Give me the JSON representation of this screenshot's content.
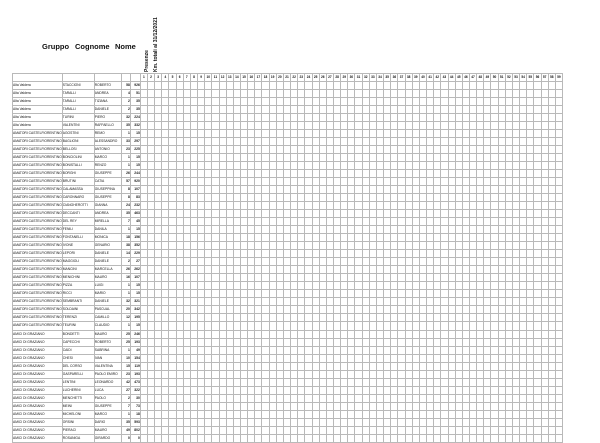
{
  "headers": {
    "gruppo": "Gruppo",
    "cognome": "Cognome",
    "nome": "Nome",
    "presenze": "Presenze",
    "km": "Km. totali al 31/12/2021"
  },
  "race_numbers": [
    1,
    2,
    3,
    4,
    5,
    6,
    7,
    8,
    9,
    10,
    11,
    12,
    13,
    14,
    15,
    16,
    17,
    18,
    19,
    20,
    21,
    22,
    23,
    24,
    25,
    26,
    27,
    28,
    29,
    30,
    31,
    32,
    33,
    34,
    35,
    36,
    37,
    38,
    39,
    40,
    41,
    42,
    43,
    44,
    45,
    46,
    47,
    48,
    49,
    50,
    51,
    52,
    53,
    54,
    55,
    56,
    57,
    58,
    59
  ],
  "race_names": [],
  "rows": [
    {
      "gruppo": "Alta Valdera",
      "cognome": "STACCIONI",
      "nome": "ROBERTO",
      "presenze": 58,
      "km": 926,
      "scores": []
    },
    {
      "gruppo": "Alta Valdera",
      "cognome": "TARALLI",
      "nome": "ANDREA",
      "presenze": 4,
      "km": 51,
      "scores": []
    },
    {
      "gruppo": "Alta Valdera",
      "cognome": "TARALLI",
      "nome": "TIZIANA",
      "presenze": 2,
      "km": 35,
      "scores": []
    },
    {
      "gruppo": "Alta Valdera",
      "cognome": "TARALLI",
      "nome": "DANIELE",
      "presenze": 2,
      "km": 35,
      "scores": []
    },
    {
      "gruppo": "Alta Valdera",
      "cognome": "TURINI",
      "nome": "PIERO",
      "presenze": 32,
      "km": 224,
      "scores": []
    },
    {
      "gruppo": "Alta Valdera",
      "cognome": "VALENTINI",
      "nome": "RAFFAELLO",
      "presenze": 35,
      "km": 332,
      "scores": []
    },
    {
      "gruppo": "AMATORI CASTELFIORENTINO",
      "cognome": "AGOSTINI",
      "nome": "REMO",
      "presenze": 1,
      "km": 15,
      "scores": []
    },
    {
      "gruppo": "AMATORI CASTELFIORENTINO",
      "cognome": "BAGLIONI",
      "nome": "ALESSANDRO",
      "presenze": 33,
      "km": 297,
      "scores": []
    },
    {
      "gruppo": "AMATORI CASTELFIORENTINO",
      "cognome": "BELLOSI",
      "nome": "ANTONIO",
      "presenze": 23,
      "km": 225,
      "scores": []
    },
    {
      "gruppo": "AMATORI CASTELFIORENTINO",
      "cognome": "BONCIOLINI",
      "nome": "MARCO",
      "presenze": 1,
      "km": 15,
      "scores": []
    },
    {
      "gruppo": "AMATORI CASTELFIORENTINO",
      "cognome": "BONISTALLI",
      "nome": "RENZO",
      "presenze": 1,
      "km": 15,
      "scores": []
    },
    {
      "gruppo": "AMATORI CASTELFIORENTINO",
      "cognome": "BORGHI",
      "nome": "GIUSEPPE",
      "presenze": 26,
      "km": 244,
      "scores": []
    },
    {
      "gruppo": "AMATORI CASTELFIORENTINO",
      "cognome": "BRUTINI",
      "nome": "CATIA",
      "presenze": 57,
      "km": 920,
      "scores": []
    },
    {
      "gruppo": "AMATORI CASTELFIORENTINO",
      "cognome": "CALAMASSA",
      "nome": "GIUSEPPINA",
      "presenze": 8,
      "km": 107,
      "scores": []
    },
    {
      "gruppo": "AMATORI CASTELFIORENTINO",
      "cognome": "CARONNARO",
      "nome": "GIUSEPPE",
      "presenze": 8,
      "km": 83,
      "scores": []
    },
    {
      "gruppo": "AMATORI CASTELFIORENTINO",
      "cognome": "CIANGHEROTTI",
      "nome": "GIANNA",
      "presenze": 24,
      "km": 232,
      "scores": []
    },
    {
      "gruppo": "AMATORI CASTELFIORENTINO",
      "cognome": "DECCANTI",
      "nome": "ANDREA",
      "presenze": 35,
      "km": 463,
      "scores": []
    },
    {
      "gruppo": "AMATORI CASTELFIORENTINO",
      "cognome": "DEL REY",
      "nome": "MIRELLA",
      "presenze": 7,
      "km": 45,
      "scores": []
    },
    {
      "gruppo": "AMATORI CASTELFIORENTINO",
      "cognome": "FENILI",
      "nome": "DANILA",
      "presenze": 1,
      "km": 15,
      "scores": []
    },
    {
      "gruppo": "AMATORI CASTELFIORENTINO",
      "cognome": "FONTANELLI",
      "nome": "MONICA",
      "presenze": 18,
      "km": 156,
      "scores": []
    },
    {
      "gruppo": "AMATORI CASTELFIORENTINO",
      "cognome": "IVONE",
      "nome": "GENARIO",
      "presenze": 38,
      "km": 352,
      "scores": []
    },
    {
      "gruppo": "AMATORI CASTELFIORENTINO",
      "cognome": "LEPORI",
      "nome": "DANIELE",
      "presenze": 14,
      "km": 229,
      "scores": []
    },
    {
      "gruppo": "AMATORI CASTELFIORENTINO",
      "cognome": "MAGGIOLI",
      "nome": "DANIELE",
      "presenze": 2,
      "km": 27,
      "scores": []
    },
    {
      "gruppo": "AMATORI CASTELFIORENTINO",
      "cognome": "MANCINI",
      "nome": "MARCELLA",
      "presenze": 26,
      "km": 262,
      "scores": []
    },
    {
      "gruppo": "AMATORI CASTELFIORENTINO",
      "cognome": "MENICHINI",
      "nome": "MAURO",
      "presenze": 16,
      "km": 107,
      "scores": []
    },
    {
      "gruppo": "AMATORI CASTELFIORENTINO",
      "cognome": "PIZZA",
      "nome": "LUIGI",
      "presenze": 1,
      "km": 15,
      "scores": []
    },
    {
      "gruppo": "AMATORI CASTELFIORENTINO",
      "cognome": "RICCI",
      "nome": "MARIO",
      "presenze": 1,
      "km": 15,
      "scores": []
    },
    {
      "gruppo": "AMATORI CASTELFIORENTINO",
      "cognome": "SEMBRANTI",
      "nome": "DANIELE",
      "presenze": 32,
      "km": 321,
      "scores": []
    },
    {
      "gruppo": "AMATORI CASTELFIORENTINO",
      "cognome": "SOLDAINI",
      "nome": "PASCUAL",
      "presenze": 20,
      "km": 342,
      "scores": []
    },
    {
      "gruppo": "AMATORI CASTELFIORENTINO",
      "cognome": "TERENZI",
      "nome": "CAMILLO",
      "presenze": 12,
      "km": 195,
      "scores": []
    },
    {
      "gruppo": "AMATORI CASTELFIORENTINO",
      "cognome": "TEURINI",
      "nome": "CLAUDIO",
      "presenze": 1,
      "km": 15,
      "scores": []
    },
    {
      "gruppo": "AMICI DI GRAZIANO",
      "cognome": "BONDETTI",
      "nome": "MAURO",
      "presenze": 25,
      "km": 246,
      "scores": []
    },
    {
      "gruppo": "AMICI DI GRAZIANO",
      "cognome": "CAPECCHI",
      "nome": "ROBERTO",
      "presenze": 25,
      "km": 193,
      "scores": []
    },
    {
      "gruppo": "AMICI DI GRAZIANO",
      "cognome": "CAIDI",
      "nome": "SABRINA",
      "presenze": 1,
      "km": 49,
      "scores": []
    },
    {
      "gruppo": "AMICI DI GRAZIANO",
      "cognome": "CHESI",
      "nome": "IVAN",
      "presenze": 10,
      "km": 154,
      "scores": []
    },
    {
      "gruppo": "AMICI DI GRAZIANO",
      "cognome": "DEL CORSO",
      "nome": "VALENTINA",
      "presenze": 15,
      "km": 119,
      "scores": []
    },
    {
      "gruppo": "AMICI DI GRAZIANO",
      "cognome": "GASPARELLI",
      "nome": "PAOLO EMIRO",
      "presenze": 23,
      "km": 193,
      "scores": []
    },
    {
      "gruppo": "AMICI DI GRAZIANO",
      "cognome": "LENTINI",
      "nome": "LEONARDO",
      "presenze": 42,
      "km": 473,
      "scores": []
    },
    {
      "gruppo": "AMICI DI GRAZIANO",
      "cognome": "LUCHERINI",
      "nome": "LUCA",
      "presenze": 27,
      "km": 322,
      "scores": []
    },
    {
      "gruppo": "AMICI DI GRAZIANO",
      "cognome": "MENCHETTI",
      "nome": "PAOLO",
      "presenze": 2,
      "km": 30,
      "scores": []
    },
    {
      "gruppo": "AMICI DI GRAZIANO",
      "cognome": "MEINI",
      "nome": "GIUSEPPE",
      "presenze": 7,
      "km": 73,
      "scores": []
    },
    {
      "gruppo": "AMICI DI GRAZIANO",
      "cognome": "MICHELONI",
      "nome": "MARCO",
      "presenze": 1,
      "km": 18,
      "scores": []
    },
    {
      "gruppo": "AMICI DI GRAZIANO",
      "cognome": "ORSINI",
      "nome": "DARIO",
      "presenze": 35,
      "km": 593,
      "scores": []
    },
    {
      "gruppo": "AMICI DI GRAZIANO",
      "cognome": "PIERACI",
      "nome": "MAURO",
      "presenze": 49,
      "km": 802,
      "scores": []
    },
    {
      "gruppo": "AMICI DI GRAZIANO",
      "cognome": "ROSANIGA",
      "nome": "GIRARDO",
      "presenze": 0,
      "km": 0,
      "scores": []
    }
  ]
}
